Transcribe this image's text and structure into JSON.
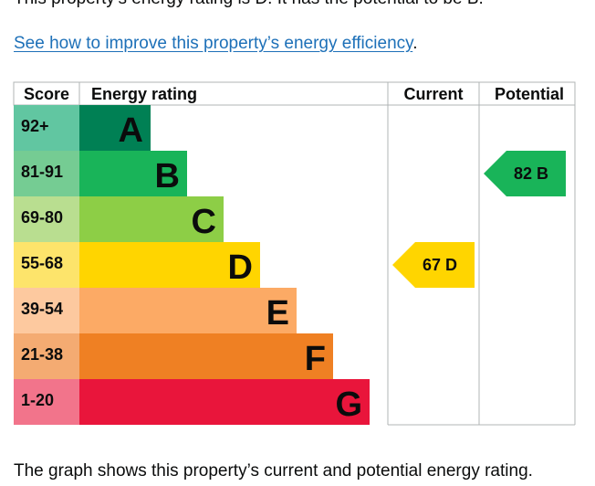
{
  "intro_text": "This property's energy rating is D. It has the potential to be B.",
  "improve_link": "See how to improve this property’s energy efficiency",
  "improve_link_suffix": ".",
  "footer_text": "The graph shows this property’s current and potential energy rating.",
  "chart_data": {
    "type": "bar",
    "title": "",
    "headers": {
      "score": "Score",
      "rating": "Energy rating",
      "current": "Current",
      "potential": "Potential"
    },
    "bands": [
      {
        "letter": "A",
        "range": "92+",
        "color": "#008054",
        "score_color": "#61c6a1"
      },
      {
        "letter": "B",
        "range": "81-91",
        "color": "#19b459",
        "score_color": "#75cc93"
      },
      {
        "letter": "C",
        "range": "69-80",
        "color": "#8dce46",
        "score_color": "#b9de90"
      },
      {
        "letter": "D",
        "range": "55-68",
        "color": "#ffd500",
        "score_color": "#fde46b"
      },
      {
        "letter": "E",
        "range": "39-54",
        "color": "#fcaa65",
        "score_color": "#fdc99f"
      },
      {
        "letter": "F",
        "range": "21-38",
        "color": "#ef8023",
        "score_color": "#f4ab72"
      },
      {
        "letter": "G",
        "range": "1-20",
        "color": "#e9153b",
        "score_color": "#f2748b"
      }
    ],
    "current": {
      "score": 67,
      "letter": "D"
    },
    "potential": {
      "score": 82,
      "letter": "B"
    }
  }
}
